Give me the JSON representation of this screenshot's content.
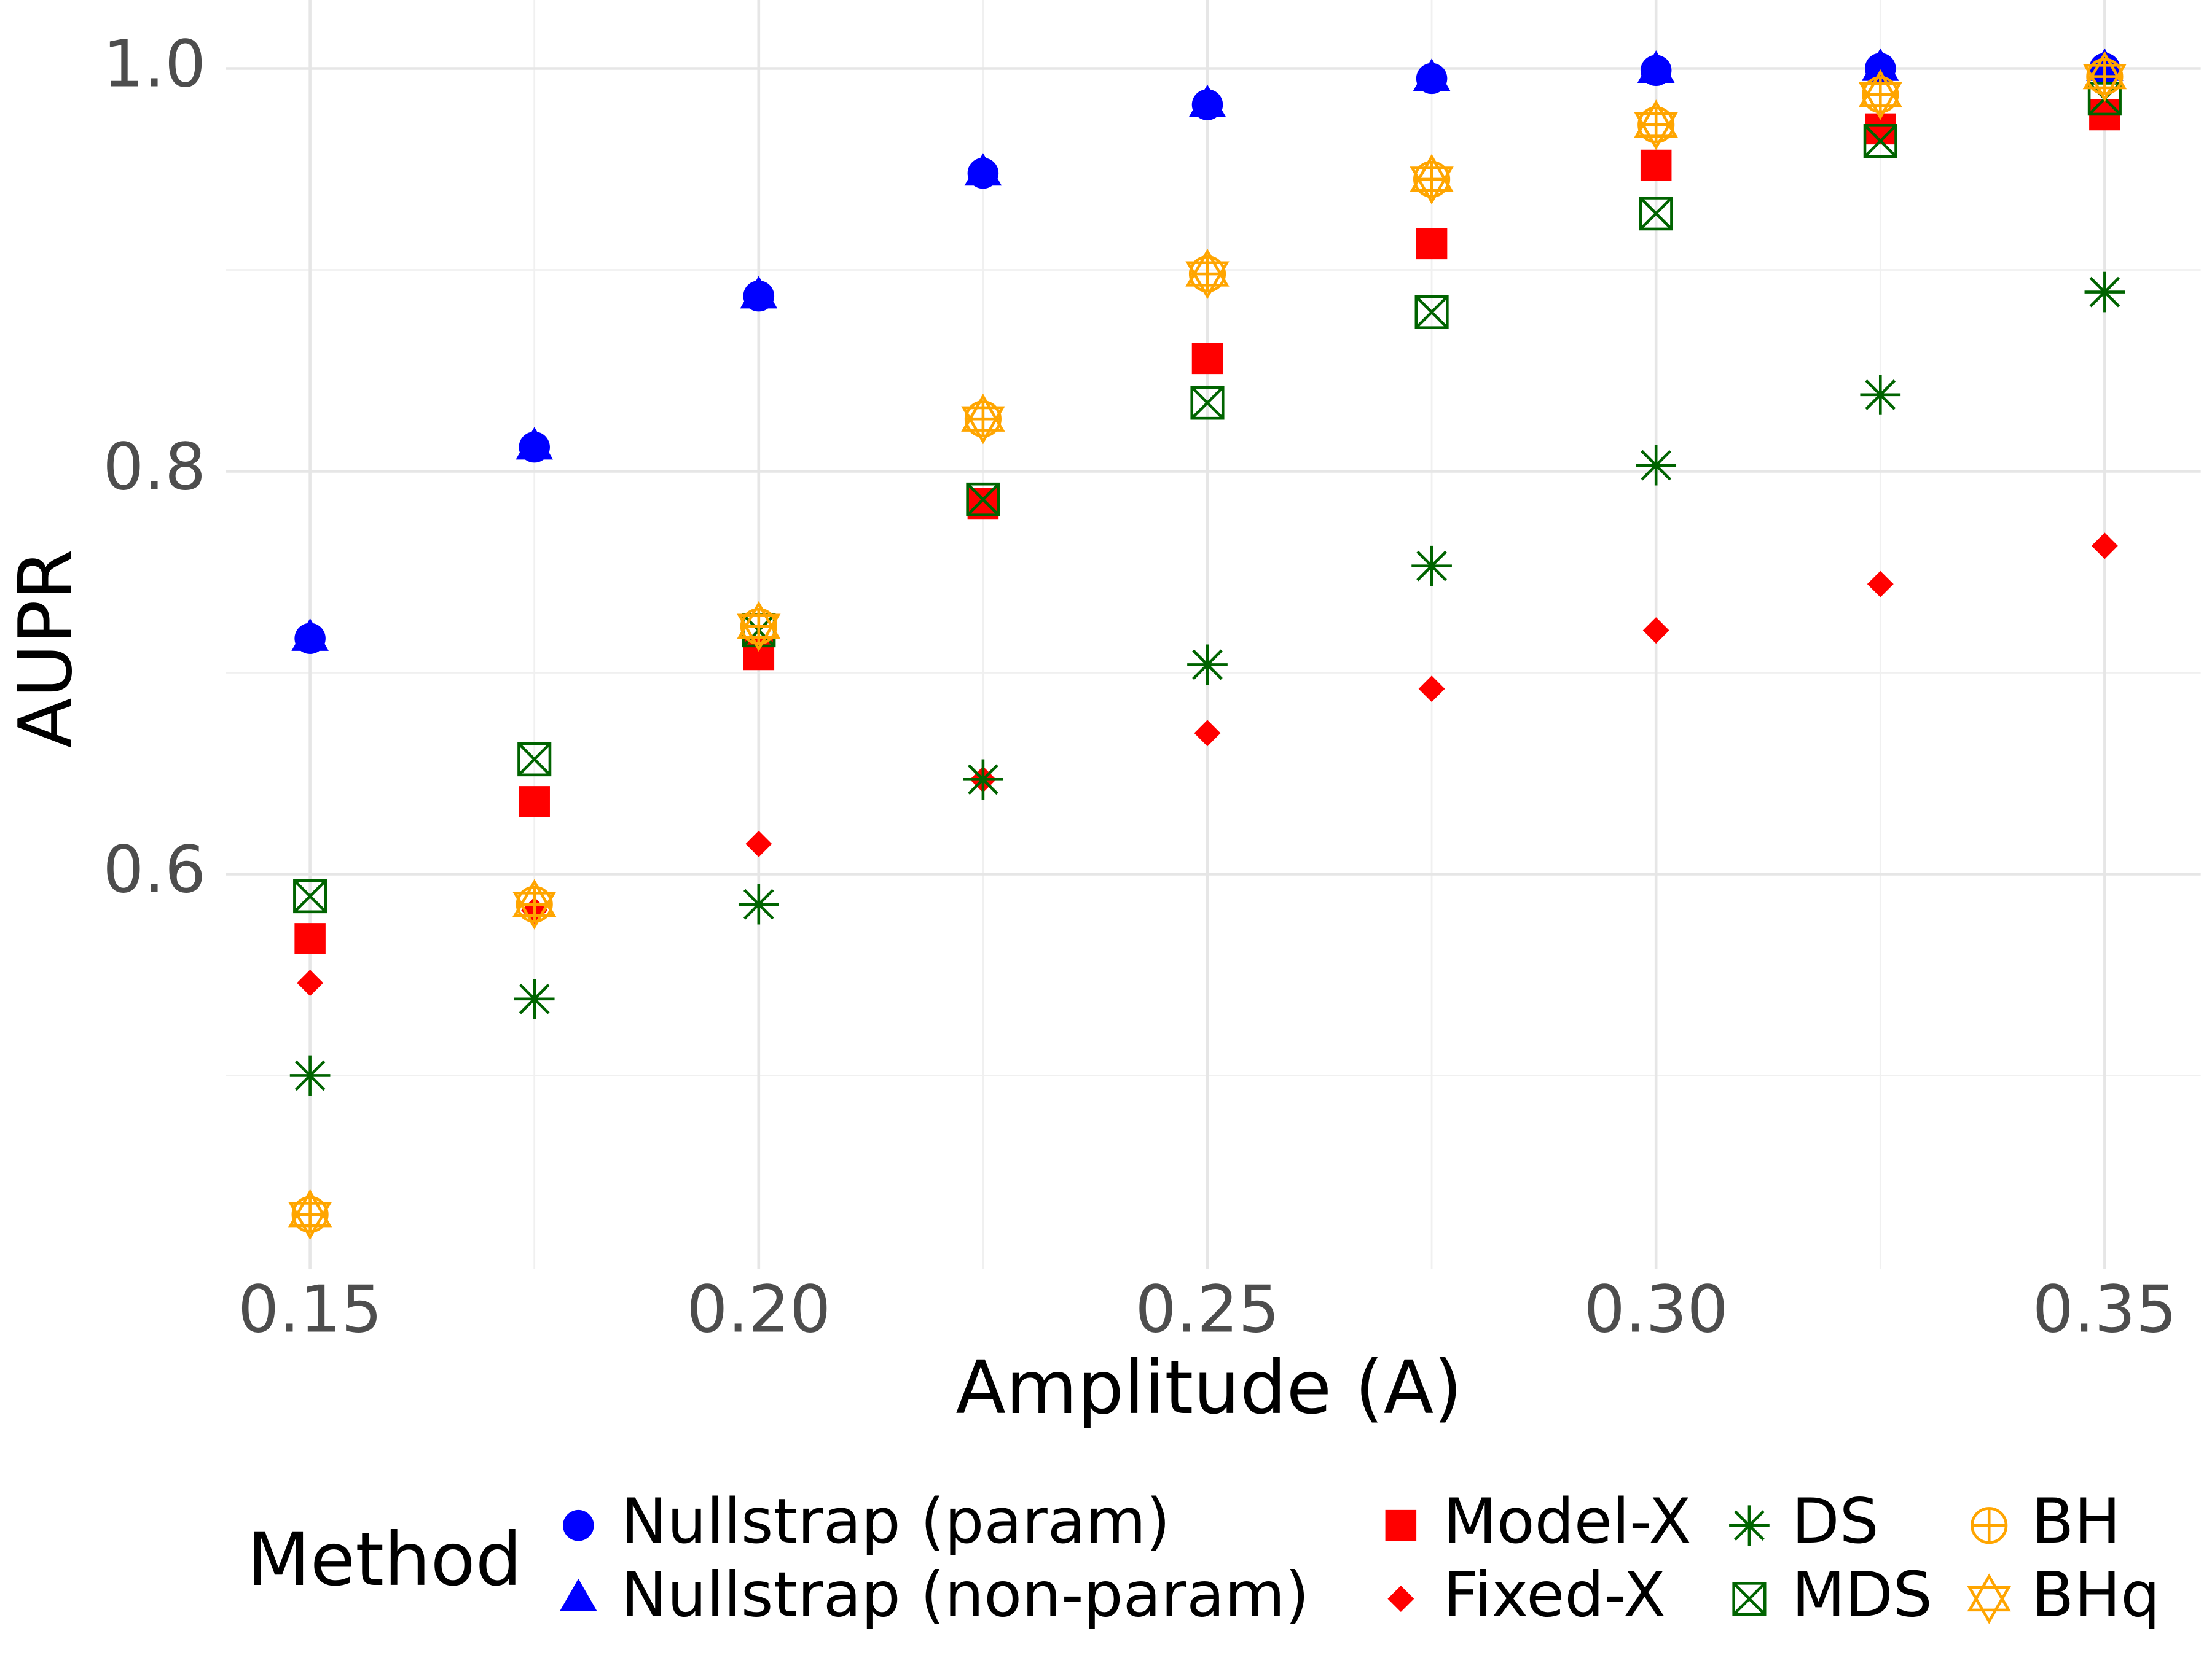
{
  "chart_data": {
    "type": "scatter",
    "xlabel": "Amplitude (A)",
    "ylabel": "AUPR",
    "legend_title": "Method",
    "legend": "bottom",
    "grid": true,
    "x": [
      0.15,
      0.175,
      0.2,
      0.225,
      0.25,
      0.275,
      0.3,
      0.325,
      0.35
    ],
    "xlim": [
      0.1406,
      0.3607
    ],
    "ylim": [
      0.404,
      1.034
    ],
    "xticks": [
      {
        "value": 0.15,
        "label": "0.15"
      },
      {
        "value": 0.2,
        "label": "0.20"
      },
      {
        "value": 0.25,
        "label": "0.25"
      },
      {
        "value": 0.3,
        "label": "0.30"
      },
      {
        "value": 0.35,
        "label": "0.35"
      }
    ],
    "xminor": [
      0.175,
      0.225,
      0.275,
      0.325
    ],
    "yticks": [
      0.6,
      0.8,
      {
        "value": 1,
        "label": "1.0"
      }
    ],
    "yminor": [
      0.5,
      0.7,
      0.9
    ],
    "series": [
      {
        "name": "Nullstrap (param)",
        "color": "#0000ff",
        "marker": "circle",
        "values": [
          0.717,
          0.812,
          0.887,
          0.948,
          0.982,
          0.995,
          0.999,
          1.0,
          1.0
        ]
      },
      {
        "name": "Nullstrap (non-param)",
        "color": "#0000ff",
        "marker": "triangle",
        "values": [
          0.717,
          0.812,
          0.887,
          0.948,
          0.982,
          0.995,
          0.999,
          1.0,
          1.0
        ]
      },
      {
        "name": "Model-X",
        "color": "#ff0000",
        "marker": "square",
        "values": [
          0.568,
          0.636,
          0.709,
          0.784,
          0.856,
          0.913,
          0.952,
          0.97,
          0.977
        ]
      },
      {
        "name": "Fixed-X",
        "color": "#ff0000",
        "marker": "diamond",
        "values": [
          0.546,
          0.582,
          0.615,
          0.647,
          0.67,
          0.692,
          0.721,
          0.744,
          0.763
        ]
      },
      {
        "name": "DS",
        "color": "#006400",
        "marker": "asterisk",
        "values": [
          0.5,
          0.538,
          0.585,
          0.647,
          0.704,
          0.753,
          0.803,
          0.838,
          0.889
        ]
      },
      {
        "name": "MDS",
        "color": "#006400",
        "marker": "boxx",
        "values": [
          0.589,
          0.657,
          0.721,
          0.786,
          0.834,
          0.879,
          0.928,
          0.964,
          0.985
        ]
      },
      {
        "name": "BH",
        "color": "#ffa500",
        "marker": "circleplus",
        "values": [
          0.431,
          0.585,
          0.723,
          0.826,
          0.898,
          0.945,
          0.972,
          0.987,
          0.996
        ]
      },
      {
        "name": "BHq",
        "color": "#ffa500",
        "marker": "hexagram",
        "values": [
          0.431,
          0.585,
          0.723,
          0.826,
          0.898,
          0.945,
          0.972,
          0.987,
          0.996
        ]
      }
    ]
  }
}
